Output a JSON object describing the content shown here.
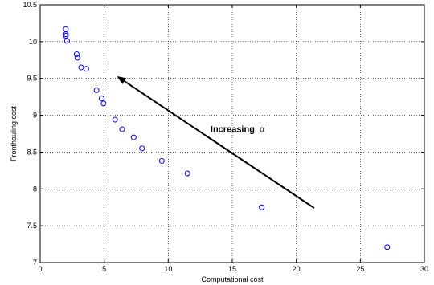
{
  "chart_data": {
    "type": "scatter",
    "title": "",
    "xlabel": "Computational cost",
    "ylabel": "Fronthauling cost",
    "xlim": [
      0,
      30
    ],
    "ylim": [
      7,
      10.5
    ],
    "xticks": [
      0,
      5,
      10,
      15,
      20,
      25,
      30
    ],
    "yticks": [
      7,
      7.5,
      8,
      8.5,
      9,
      9.5,
      10,
      10.5
    ],
    "xtick_labels": [
      "0",
      "5",
      "10",
      "15",
      "20",
      "25",
      "30"
    ],
    "ytick_labels": [
      "7",
      "7.5",
      "8",
      "8.5",
      "9",
      "9.5",
      "10",
      "10.5"
    ],
    "grid": true,
    "marker": "circle",
    "series": [
      {
        "color": "#0000ff",
        "x": [
          2.0,
          2.0,
          2.0,
          2.1,
          2.85,
          2.9,
          3.2,
          3.6,
          4.4,
          4.8,
          4.95,
          5.85,
          6.4,
          7.3,
          7.95,
          9.5,
          11.5,
          17.3,
          27.1
        ],
        "y": [
          10.17,
          10.1,
          10.08,
          10.01,
          9.83,
          9.78,
          9.65,
          9.63,
          9.34,
          9.23,
          9.16,
          8.94,
          8.81,
          8.7,
          8.55,
          8.38,
          8.21,
          7.75,
          7.21
        ]
      }
    ],
    "annotations": [
      {
        "text_main": "Increasing",
        "text_symbol": "α",
        "text_x": 13.3,
        "text_y": 8.77,
        "arrow_from": [
          21.4,
          7.74
        ],
        "arrow_to": [
          6.0,
          9.53
        ]
      }
    ]
  }
}
